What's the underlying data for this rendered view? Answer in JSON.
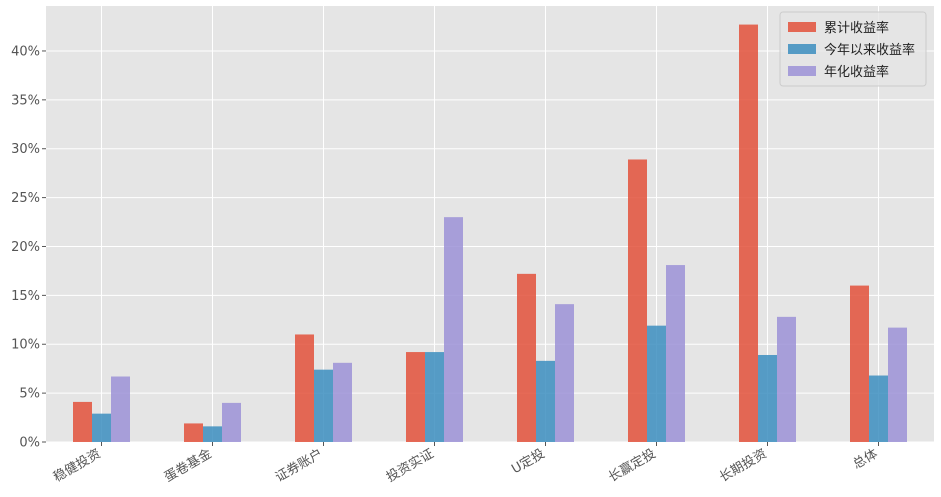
{
  "chart_data": {
    "type": "bar",
    "categories": [
      "稳健投资",
      "蛋卷基金",
      "证券账户",
      "投资实证",
      "U定投",
      "长赢定投",
      "长期投资",
      "总体"
    ],
    "series": [
      {
        "name": "累计收益率",
        "color": "#E24A33",
        "values": [
          4.1,
          1.9,
          11.0,
          9.2,
          17.2,
          28.9,
          42.7,
          16.0
        ]
      },
      {
        "name": "今年以来收益率",
        "color": "#348ABD",
        "values": [
          2.9,
          1.6,
          7.4,
          9.2,
          8.3,
          11.9,
          8.9,
          6.8
        ]
      },
      {
        "name": "年化收益率",
        "color": "#988ED5",
        "values": [
          6.7,
          4.0,
          8.1,
          23.0,
          14.1,
          18.1,
          12.8,
          11.7
        ]
      }
    ],
    "yticks": [
      "0%",
      "5%",
      "10%",
      "15%",
      "20%",
      "25%",
      "30%",
      "35%",
      "40%"
    ],
    "ylim": [
      0,
      44.6
    ],
    "grid": true,
    "legend": "top-right",
    "background": "#E5E5E5"
  }
}
